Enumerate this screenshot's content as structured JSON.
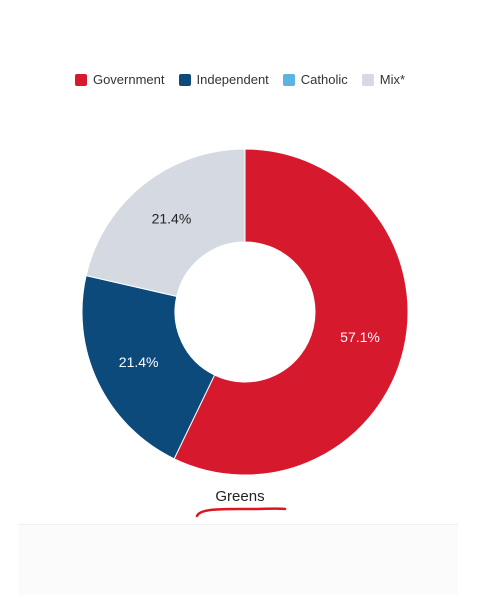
{
  "chart_data": {
    "type": "pie",
    "variant": "donut",
    "title": "Greens",
    "categories": [
      "Government",
      "Independent",
      "Catholic",
      "Mix*"
    ],
    "values": [
      57.1,
      21.4,
      0,
      21.4
    ],
    "value_labels": [
      "57.1%",
      "21.4%",
      "",
      "21.4%"
    ],
    "colors": [
      "#d7192e",
      "#0c4a7c",
      "#5cb4e4",
      "#d5dae2"
    ],
    "label_colors": [
      "#ffffff",
      "#ffffff",
      "#ffffff",
      "#222222"
    ],
    "legend_position": "top"
  },
  "legend": {
    "items": [
      {
        "label": "Government",
        "color": "#d7192e"
      },
      {
        "label": "Independent",
        "color": "#0c4a7c"
      },
      {
        "label": "Catholic",
        "color": "#5cb4e4"
      },
      {
        "label": "Mix*",
        "color": "#d5dae2"
      }
    ]
  },
  "annotation": {
    "underline_color": "#e0141e"
  }
}
